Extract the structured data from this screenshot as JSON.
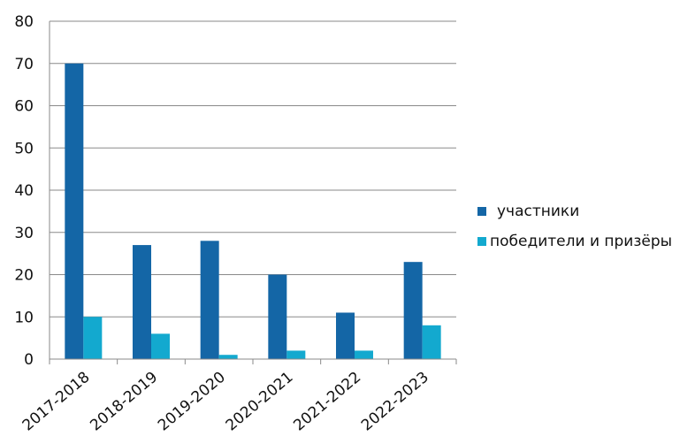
{
  "chart_data": {
    "type": "bar",
    "categories": [
      "2017-2018",
      "2018-2019",
      "2019-2020",
      "2020-2021",
      "2021-2022",
      "2022-2023"
    ],
    "series": [
      {
        "name": "участники",
        "values": [
          70,
          27,
          28,
          20,
          11,
          23
        ],
        "color": "#1466a6"
      },
      {
        "name": "победители и призёры",
        "values": [
          10,
          6,
          1,
          2,
          2,
          8
        ],
        "color": "#13a9cf"
      }
    ],
    "ylim": [
      0,
      80
    ],
    "yticks": [
      "0",
      "10",
      "20",
      "30",
      "40",
      "50",
      "60",
      "70",
      "80"
    ],
    "title": "",
    "xlabel": "",
    "ylabel": "",
    "grid": true,
    "legend": "right"
  }
}
